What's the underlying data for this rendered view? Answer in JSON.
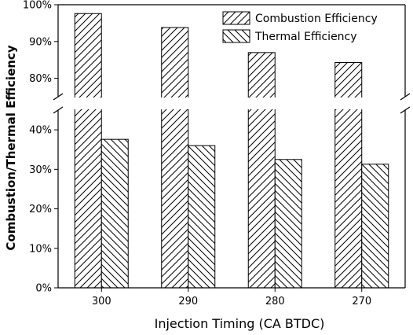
{
  "chart_data": {
    "type": "bar",
    "title": "",
    "xlabel": "Injection Timing (CA BTDC)",
    "ylabel": "Combustion/Thermal Efficiency",
    "categories": [
      "300",
      "290",
      "280",
      "270"
    ],
    "series": [
      {
        "name": "Combustion Efficiency",
        "values": [
          97.6,
          93.8,
          87.0,
          84.3
        ],
        "hatch": "forward-diagonal"
      },
      {
        "name": "Thermal Efficiency",
        "values": [
          37.6,
          36.0,
          32.5,
          31.3
        ],
        "hatch": "backward-diagonal"
      }
    ],
    "y_axis": {
      "broken": true,
      "lower_segment": {
        "range": [
          0,
          45
        ],
        "ticks": [
          0,
          10,
          20,
          30,
          40
        ],
        "tick_labels": [
          "0%",
          "10%",
          "20%",
          "30%",
          "40%"
        ]
      },
      "upper_segment": {
        "range": [
          75,
          100
        ],
        "ticks": [
          80,
          90,
          100
        ],
        "tick_labels": [
          "80%",
          "90%",
          "100%"
        ]
      }
    },
    "legend_placement": "top-right",
    "grid": false,
    "colors": {
      "bar_fill": "#ffffff",
      "hatch": "#000000",
      "axis": "#000000"
    }
  }
}
